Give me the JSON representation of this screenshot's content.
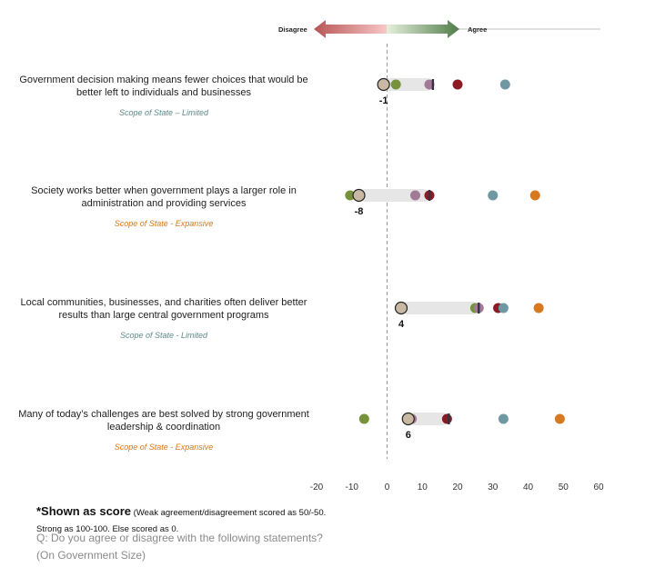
{
  "legend": {
    "left_label": "Disagree",
    "right_label": "Agree"
  },
  "colors": {
    "highlight": "#c9b9a4",
    "bar": "#e6e6e6",
    "series": [
      "#76933c",
      "#a37a95",
      "#8b1a24",
      "#6f98a2",
      "#d6791f"
    ],
    "marker": "#333344",
    "limited": "#5e8a8a",
    "expansive": "#d6791f"
  },
  "chart_data": {
    "type": "dot",
    "x_ticks": [
      -20,
      -10,
      0,
      10,
      20,
      30,
      40,
      50,
      60
    ],
    "xlim": [
      -20,
      60
    ],
    "reference_line": 0,
    "rows": [
      {
        "statement": "Government decision making means fewer choices that would be better left to individuals and businesses",
        "category": "Scope of State – Limited",
        "category_type": "limited",
        "highlight_value": -1,
        "highlight_label": "-1",
        "bar_end": 13,
        "points": [
          2.5,
          12,
          20,
          33.5
        ]
      },
      {
        "statement": "Society works better when government plays a larger role in administration and providing services",
        "category": "Scope of State - Expansive",
        "category_type": "expansive",
        "highlight_value": -8,
        "highlight_label": "-8",
        "bar_end": 12,
        "points": [
          -10.5,
          8,
          12,
          30,
          42
        ]
      },
      {
        "statement": "Local communities, businesses, and charities often deliver better results than large central government programs",
        "category": "Scope of State - Limited",
        "category_type": "limited",
        "highlight_value": 4,
        "highlight_label": "4",
        "bar_end": 26,
        "points": [
          25,
          26,
          31.5,
          33,
          43
        ]
      },
      {
        "statement": "Many of today’s challenges are best solved by strong government leadership & coordination",
        "category": "Scope of State - Expansive",
        "category_type": "expansive",
        "highlight_value": 6,
        "highlight_label": "6",
        "bar_end": 17.5,
        "points": [
          -6.5,
          7,
          17,
          33,
          49
        ]
      }
    ]
  },
  "footnote": {
    "bold": "*Shown as score",
    "line1": " (Weak agreement/disagreement scored as 50/-50.",
    "line2": "Strong as 100-100. Else scored as 0."
  },
  "question": {
    "line1": "Q: Do you agree or disagree with the following statements?",
    "line2": "(On Government Size)"
  }
}
